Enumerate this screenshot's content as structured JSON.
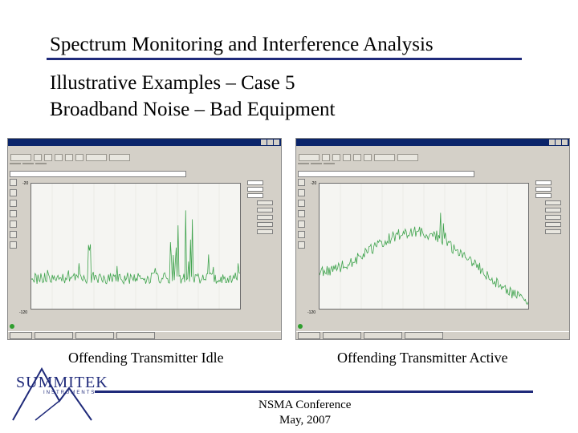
{
  "slide": {
    "title": "Spectrum Monitoring and Interference Analysis",
    "subtitle_line1": "Illustrative Examples – Case 5",
    "subtitle_line2": "Broadband Noise – Bad Equipment",
    "caption_left": "Offending Transmitter Idle",
    "caption_right": "Offending Transmitter Active",
    "footer_line1": "NSMA Conference",
    "footer_line2": "May, 2007",
    "logo_text": "SUMMITEK",
    "logo_sub": "INSTRUMENTS",
    "accent_color": "#1f2a7a"
  },
  "screens": [
    {
      "name": "idle",
      "y_top_label": "-20",
      "y_bottom_label": "-120",
      "trace_color": "#3fa34d",
      "trace_shape": "flat-noise-with-spikes"
    },
    {
      "name": "active",
      "y_top_label": "-20",
      "y_bottom_label": "-120",
      "trace_color": "#3fa34d",
      "trace_shape": "raised-broadband-hump"
    }
  ],
  "icons": [
    "window-control-icon",
    "toolbar-button-icon",
    "status-dot-icon"
  ]
}
